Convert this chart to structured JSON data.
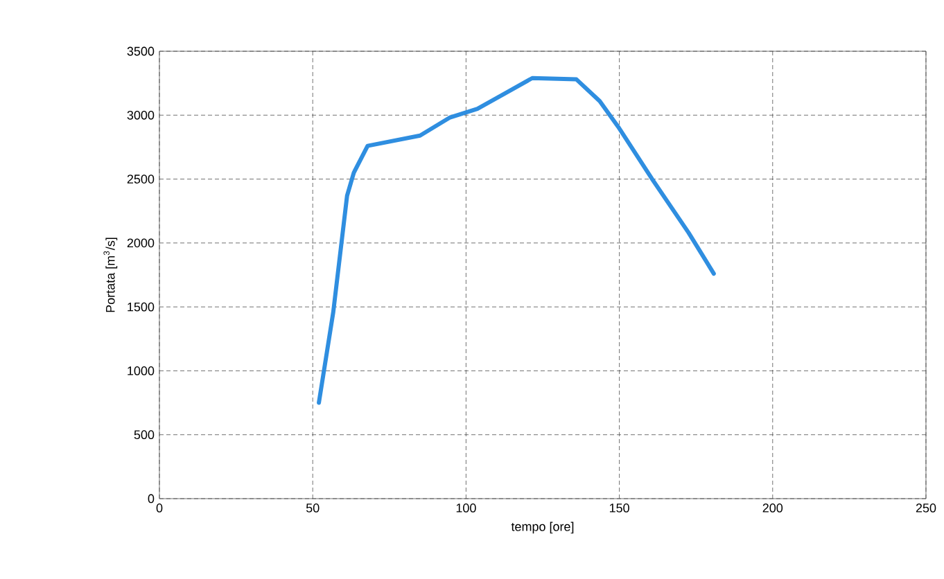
{
  "chart_data": {
    "type": "line",
    "xlabel": "tempo [ore]",
    "ylabel": "Portata [m$^{3}$/s]",
    "xlim": [
      0,
      250
    ],
    "ylim": [
      0,
      3500
    ],
    "xticks": [
      0,
      50,
      100,
      150,
      200,
      250
    ],
    "yticks": [
      0,
      500,
      1000,
      1500,
      2000,
      2500,
      3000,
      3500
    ],
    "grid": true,
    "marker": "none",
    "line_style": "solid",
    "series": [
      {
        "color": "#2f8ee0",
        "x": [
          52,
          56.7,
          61.2,
          63.4,
          67.9,
          85,
          94.6,
          103.7,
          112.7,
          121.6,
          136,
          143.6,
          149.6,
          160.7,
          172.6,
          180.8
        ],
        "values": [
          750,
          1460,
          2370,
          2550,
          2760,
          2840,
          2980,
          3050,
          3170,
          3290,
          3280,
          3110,
          2910,
          2500,
          2080,
          1760
        ]
      }
    ]
  }
}
